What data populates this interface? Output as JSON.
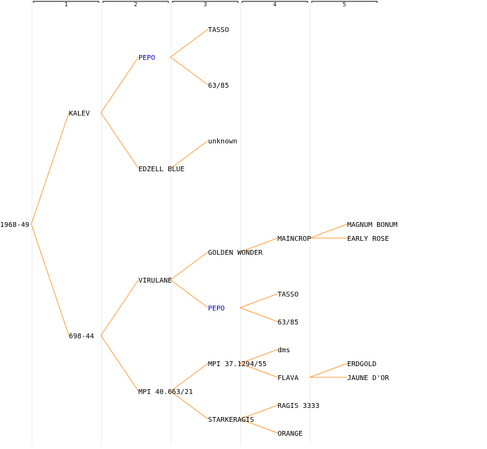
{
  "columns": [
    "1",
    "2",
    "3",
    "4",
    "5"
  ],
  "colors": {
    "edge": "#ff9933",
    "text": "#000000",
    "highlight": "#0000cc",
    "gridline": "#e8e8e8",
    "header_line": "#000000"
  },
  "nodes": [
    {
      "id": "n0",
      "label": "1968-49",
      "gen": 0,
      "row": 16
    },
    {
      "id": "n1",
      "label": "KALEV",
      "gen": 1,
      "row": 8,
      "parent": "n0"
    },
    {
      "id": "n2",
      "label": "698-44",
      "gen": 1,
      "row": 24,
      "parent": "n0"
    },
    {
      "id": "n3",
      "label": "PEPO",
      "gen": 2,
      "row": 4,
      "parent": "n1",
      "highlight": true
    },
    {
      "id": "n4",
      "label": "EDZELL BLUE",
      "gen": 2,
      "row": 12,
      "parent": "n1"
    },
    {
      "id": "n5",
      "label": "VIRULANE",
      "gen": 2,
      "row": 20,
      "parent": "n2"
    },
    {
      "id": "n6",
      "label": "MPI 40.663/21",
      "gen": 2,
      "row": 28,
      "parent": "n2"
    },
    {
      "id": "n7",
      "label": "TASSO",
      "gen": 3,
      "row": 2,
      "parent": "n3"
    },
    {
      "id": "n8",
      "label": "63/85",
      "gen": 3,
      "row": 6,
      "parent": "n3"
    },
    {
      "id": "n9",
      "label": "unknown",
      "gen": 3,
      "row": 10,
      "parent": "n4"
    },
    {
      "id": "n10",
      "label": "GOLDEN WONDER",
      "gen": 3,
      "row": 18,
      "parent": "n5"
    },
    {
      "id": "n11",
      "label": "PEPO",
      "gen": 3,
      "row": 22,
      "parent": "n5",
      "highlight": true
    },
    {
      "id": "n12",
      "label": "MPI 37.1294/55",
      "gen": 3,
      "row": 26,
      "parent": "n6"
    },
    {
      "id": "n13",
      "label": "STARKERAGIS",
      "gen": 3,
      "row": 30,
      "parent": "n6"
    },
    {
      "id": "n14",
      "label": "MAINCROP",
      "gen": 4,
      "row": 17,
      "parent": "n10"
    },
    {
      "id": "n15",
      "label": "TASSO",
      "gen": 4,
      "row": 21,
      "parent": "n11"
    },
    {
      "id": "n16",
      "label": "63/85",
      "gen": 4,
      "row": 23,
      "parent": "n11"
    },
    {
      "id": "n17",
      "label": "dms",
      "gen": 4,
      "row": 25,
      "parent": "n12"
    },
    {
      "id": "n18",
      "label": "FLAVA",
      "gen": 4,
      "row": 27,
      "parent": "n12"
    },
    {
      "id": "n19",
      "label": "RAGIS 3333",
      "gen": 4,
      "row": 29,
      "parent": "n13"
    },
    {
      "id": "n20",
      "label": "ORANGE",
      "gen": 4,
      "row": 31,
      "parent": "n13"
    },
    {
      "id": "n21",
      "label": "MAGNUM BONUM",
      "gen": 5,
      "row": 16,
      "parent": "n14"
    },
    {
      "id": "n22",
      "label": "EARLY ROSE",
      "gen": 5,
      "row": 17,
      "parent": "n14"
    },
    {
      "id": "n23",
      "label": "ERDGOLD",
      "gen": 5,
      "row": 26,
      "parent": "n18"
    },
    {
      "id": "n24",
      "label": "JAUNE D'OR",
      "gen": 5,
      "row": 27,
      "parent": "n18"
    }
  ]
}
